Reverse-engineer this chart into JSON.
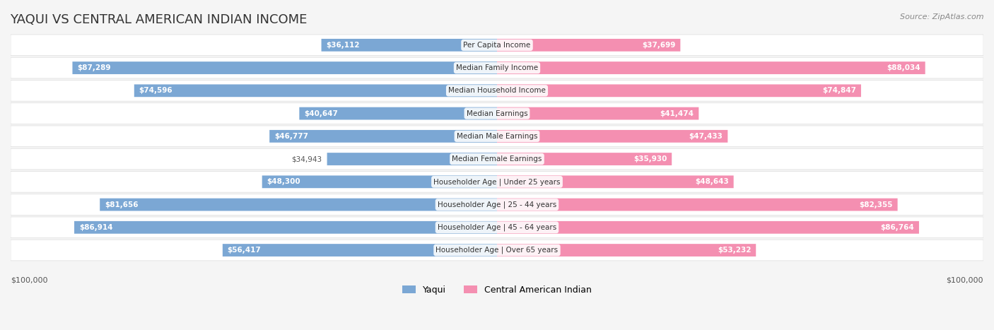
{
  "title": "YAQUI VS CENTRAL AMERICAN INDIAN INCOME",
  "source": "Source: ZipAtlas.com",
  "categories": [
    "Per Capita Income",
    "Median Family Income",
    "Median Household Income",
    "Median Earnings",
    "Median Male Earnings",
    "Median Female Earnings",
    "Householder Age | Under 25 years",
    "Householder Age | 25 - 44 years",
    "Householder Age | 45 - 64 years",
    "Householder Age | Over 65 years"
  ],
  "yaqui_values": [
    36112,
    87289,
    74596,
    40647,
    46777,
    34943,
    48300,
    81656,
    86914,
    56417
  ],
  "central_values": [
    37699,
    88034,
    74847,
    41474,
    47433,
    35930,
    48643,
    82355,
    86764,
    53232
  ],
  "yaqui_labels": [
    "$36,112",
    "$87,289",
    "$74,596",
    "$40,647",
    "$46,777",
    "$34,943",
    "$48,300",
    "$81,656",
    "$86,914",
    "$56,417"
  ],
  "central_labels": [
    "$37,699",
    "$88,034",
    "$74,847",
    "$41,474",
    "$47,433",
    "$35,930",
    "$48,643",
    "$82,355",
    "$86,764",
    "$53,232"
  ],
  "max_val": 100000,
  "yaqui_color": "#7ba7d4",
  "central_color": "#f48fb1",
  "bg_color": "#f5f5f5",
  "row_bg": "#ffffff",
  "legend_yaqui": "Yaqui",
  "legend_central": "Central American Indian",
  "xlabel_left": "$100,000",
  "xlabel_right": "$100,000"
}
